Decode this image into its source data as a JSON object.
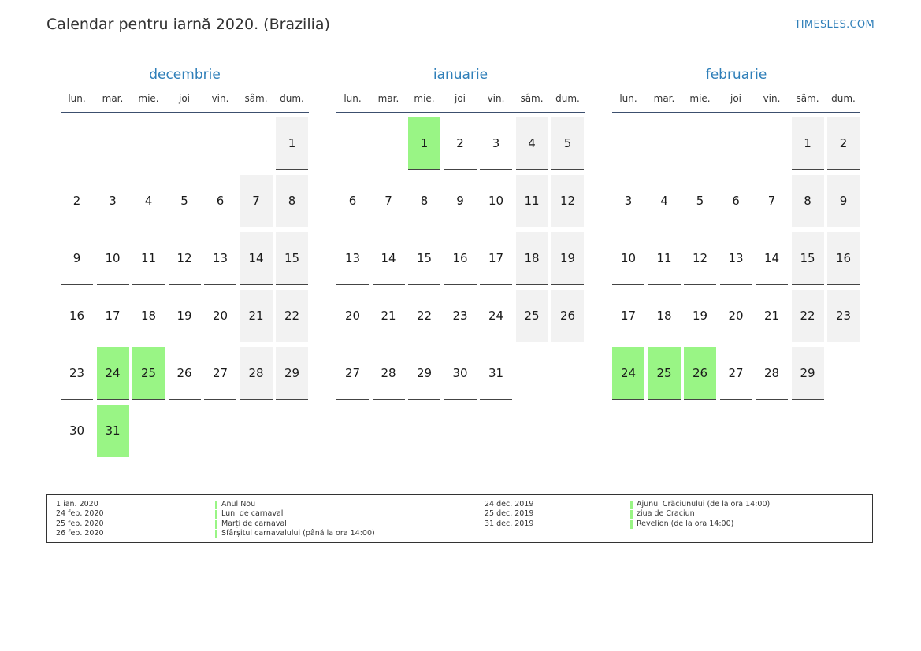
{
  "header": {
    "title": "Calendar pentru iarnă 2020. (Brazilia)",
    "site": "TIMESLES.COM"
  },
  "colors": {
    "accent": "#2f7fb9",
    "holiday": "#99f585",
    "weekend": "#f2f2f2"
  },
  "weekdays": [
    "lun.",
    "mar.",
    "mie.",
    "joi",
    "vin.",
    "sâm.",
    "dum."
  ],
  "months": [
    {
      "name": "decembrie",
      "start_offset": 6,
      "days": 31,
      "holidays": [
        24,
        25,
        31
      ]
    },
    {
      "name": "ianuarie",
      "start_offset": 2,
      "days": 31,
      "holidays": [
        1
      ]
    },
    {
      "name": "februarie",
      "start_offset": 5,
      "days": 29,
      "holidays": [
        24,
        25,
        26
      ]
    }
  ],
  "legend": {
    "left": [
      {
        "date": "1 ian. 2020",
        "name": "Anul Nou"
      },
      {
        "date": "24 feb. 2020",
        "name": "Luni de carnaval"
      },
      {
        "date": "25 feb. 2020",
        "name": "Marți de carnaval"
      },
      {
        "date": "26 feb. 2020",
        "name": "Sfârșitul carnavalului (până la ora 14:00)"
      }
    ],
    "right": [
      {
        "date": "24 dec. 2019",
        "name": "Ajunul Crăciunului (de la ora 14:00)"
      },
      {
        "date": "25 dec. 2019",
        "name": "ziua de Craciun"
      },
      {
        "date": "31 dec. 2019",
        "name": "Revelion (de la ora 14:00)"
      }
    ]
  }
}
